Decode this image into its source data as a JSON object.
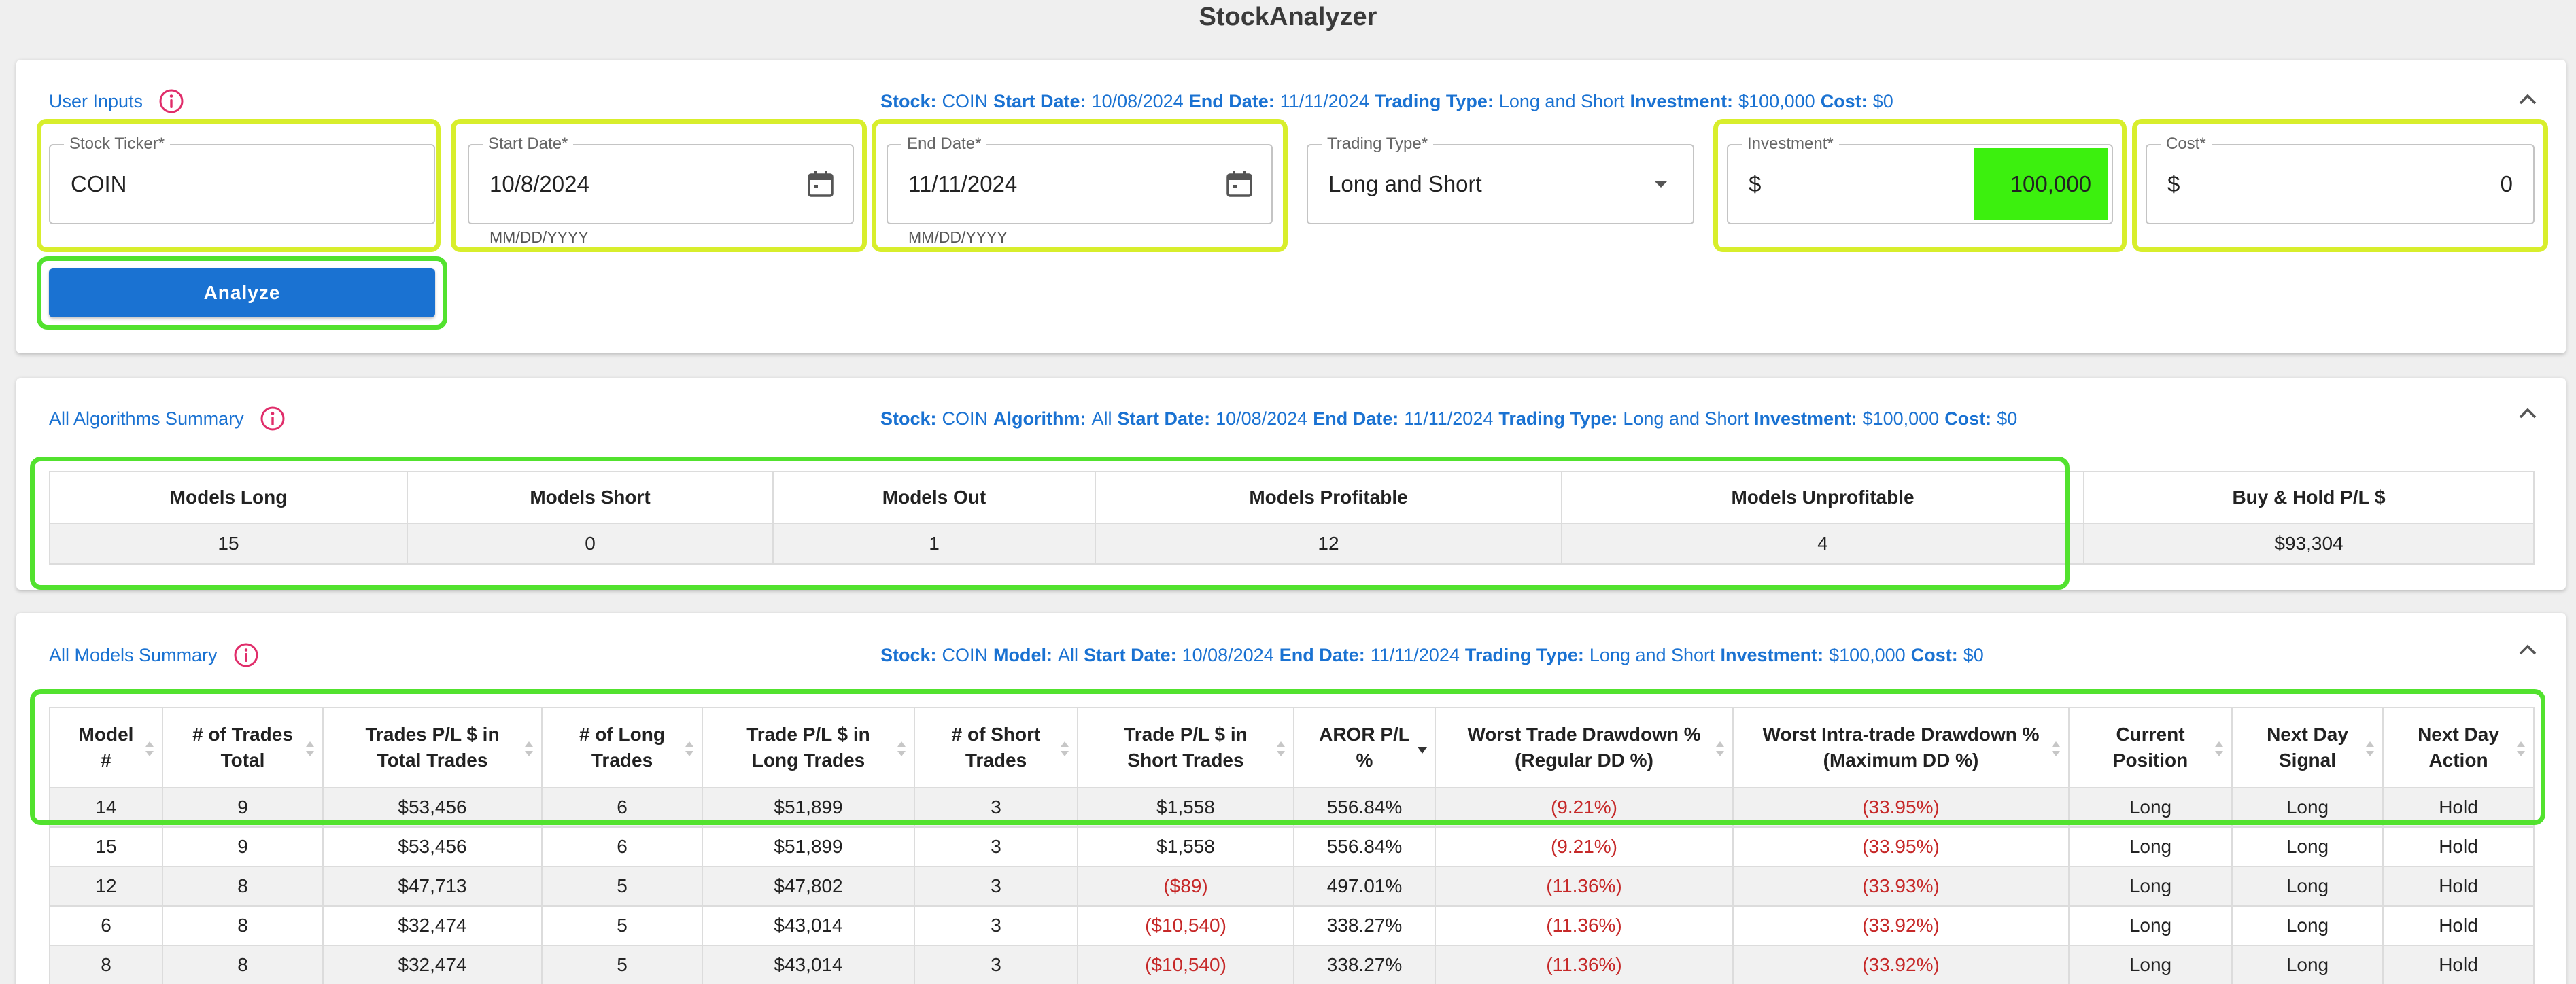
{
  "app": {
    "title": "StockAnalyzer"
  },
  "user_inputs": {
    "title": "User Inputs",
    "summary": [
      {
        "k": "Stock:",
        "v": "COIN"
      },
      {
        "k": "Start Date:",
        "v": "10/08/2024"
      },
      {
        "k": "End Date:",
        "v": "11/11/2024"
      },
      {
        "k": "Trading Type:",
        "v": "Long and Short"
      },
      {
        "k": "Investment:",
        "v": "$100,000"
      },
      {
        "k": "Cost:",
        "v": "$0"
      }
    ],
    "ticker": {
      "label": "Stock Ticker*",
      "value": "COIN"
    },
    "start_date": {
      "label": "Start Date*",
      "value": "10/8/2024",
      "helper": "MM/DD/YYYY"
    },
    "end_date": {
      "label": "End Date*",
      "value": "11/11/2024",
      "helper": "MM/DD/YYYY"
    },
    "trading_type": {
      "label": "Trading Type*",
      "value": "Long and Short"
    },
    "investment": {
      "label": "Investment*",
      "prefix": "$",
      "value": "100,000"
    },
    "cost": {
      "label": "Cost*",
      "prefix": "$",
      "value": "0"
    },
    "analyze_label": "Analyze"
  },
  "algorithms_summary": {
    "title": "All Algorithms Summary",
    "summary": [
      {
        "k": "Stock:",
        "v": "COIN"
      },
      {
        "k": "Algorithm:",
        "v": "All"
      },
      {
        "k": "Start Date:",
        "v": "10/08/2024"
      },
      {
        "k": "End Date:",
        "v": "11/11/2024"
      },
      {
        "k": "Trading Type:",
        "v": "Long and Short"
      },
      {
        "k": "Investment:",
        "v": "$100,000"
      },
      {
        "k": "Cost:",
        "v": "$0"
      }
    ],
    "headers": [
      "Models Long",
      "Models Short",
      "Models Out",
      "Models Profitable",
      "Models Unprofitable",
      "Buy & Hold P/L $"
    ],
    "values": [
      "15",
      "0",
      "1",
      "12",
      "4",
      "$93,304"
    ]
  },
  "models_summary": {
    "title": "All Models Summary",
    "summary": [
      {
        "k": "Stock:",
        "v": "COIN"
      },
      {
        "k": "Model:",
        "v": "All"
      },
      {
        "k": "Start Date:",
        "v": "10/08/2024"
      },
      {
        "k": "End Date:",
        "v": "11/11/2024"
      },
      {
        "k": "Trading Type:",
        "v": "Long and Short"
      },
      {
        "k": "Investment:",
        "v": "$100,000"
      },
      {
        "k": "Cost:",
        "v": "$0"
      }
    ],
    "headers": [
      [
        "Model",
        "#"
      ],
      [
        "# of Trades",
        "Total"
      ],
      [
        "Trades P/L $ in",
        "Total Trades"
      ],
      [
        "# of Long",
        "Trades"
      ],
      [
        "Trade P/L $ in",
        "Long Trades"
      ],
      [
        "# of Short",
        "Trades"
      ],
      [
        "Trade P/L $ in",
        "Short Trades"
      ],
      [
        "AROR P/L",
        "%"
      ],
      [
        "Worst Trade Drawdown %",
        "(Regular DD %)"
      ],
      [
        "Worst Intra-trade Drawdown %",
        "(Maximum DD %)"
      ],
      [
        "Current",
        "Position"
      ],
      [
        "Next Day",
        "Signal"
      ],
      [
        "Next Day",
        "Action"
      ]
    ],
    "rows": [
      [
        "14",
        "9",
        "$53,456",
        "6",
        "$51,899",
        "3",
        "$1,558",
        "556.84%",
        "(9.21%)",
        "(33.95%)",
        "Long",
        "Long",
        "Hold"
      ],
      [
        "15",
        "9",
        "$53,456",
        "6",
        "$51,899",
        "3",
        "$1,558",
        "556.84%",
        "(9.21%)",
        "(33.95%)",
        "Long",
        "Long",
        "Hold"
      ],
      [
        "12",
        "8",
        "$47,713",
        "5",
        "$47,802",
        "3",
        "($89)",
        "497.01%",
        "(11.36%)",
        "(33.93%)",
        "Long",
        "Long",
        "Hold"
      ],
      [
        "6",
        "8",
        "$32,474",
        "5",
        "$43,014",
        "3",
        "($10,540)",
        "338.27%",
        "(11.36%)",
        "(33.92%)",
        "Long",
        "Long",
        "Hold"
      ],
      [
        "8",
        "8",
        "$32,474",
        "5",
        "$43,014",
        "3",
        "($10,540)",
        "338.27%",
        "(11.36%)",
        "(33.92%)",
        "Long",
        "Long",
        "Hold"
      ]
    ]
  },
  "colors": {
    "accent": "#1a72d2",
    "negative": "#c62828",
    "highlight_yellow": "#d8ee2c",
    "highlight_green": "#52e22e",
    "investment_fill": "#3cf00e"
  },
  "icons": [
    "info-icon",
    "calendar-icon",
    "chevron-up-icon",
    "dropdown-arrow-icon",
    "sort-icon",
    "sort-down-icon"
  ]
}
